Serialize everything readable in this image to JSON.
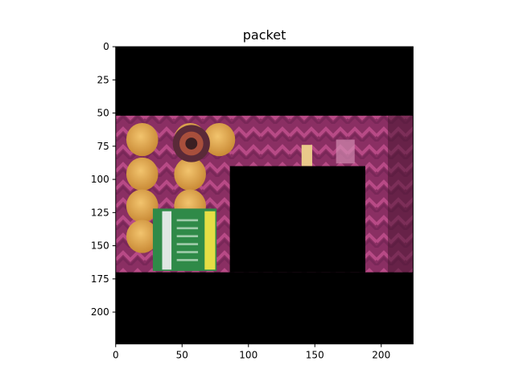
{
  "chart_data": {
    "type": "image",
    "title": "packet",
    "xlabel": "",
    "ylabel": "",
    "image_width": 224,
    "image_height": 224,
    "xlim": [
      0,
      224
    ],
    "ylim": [
      224,
      0
    ],
    "y_inverted": true,
    "grid": false,
    "xticks": [
      0,
      50,
      100,
      150,
      200
    ],
    "yticks": [
      0,
      25,
      50,
      75,
      100,
      125,
      150,
      175,
      200
    ],
    "visible_region": {
      "x": [
        0,
        224
      ],
      "y": [
        52,
        170
      ]
    },
    "masked_region": {
      "x": [
        86,
        188
      ],
      "y": [
        90,
        170
      ]
    },
    "colors": {
      "background": "#000000",
      "packet_purple": "#8a2f63",
      "packet_pink": "#c04a86",
      "chip": "#e3ad52",
      "label_green": "#2f8a48",
      "label_white": "#dfe7e3",
      "label_yellow": "#e5de45"
    },
    "icons": [
      "chip-circle-icon",
      "nutrition-label-icon"
    ]
  }
}
